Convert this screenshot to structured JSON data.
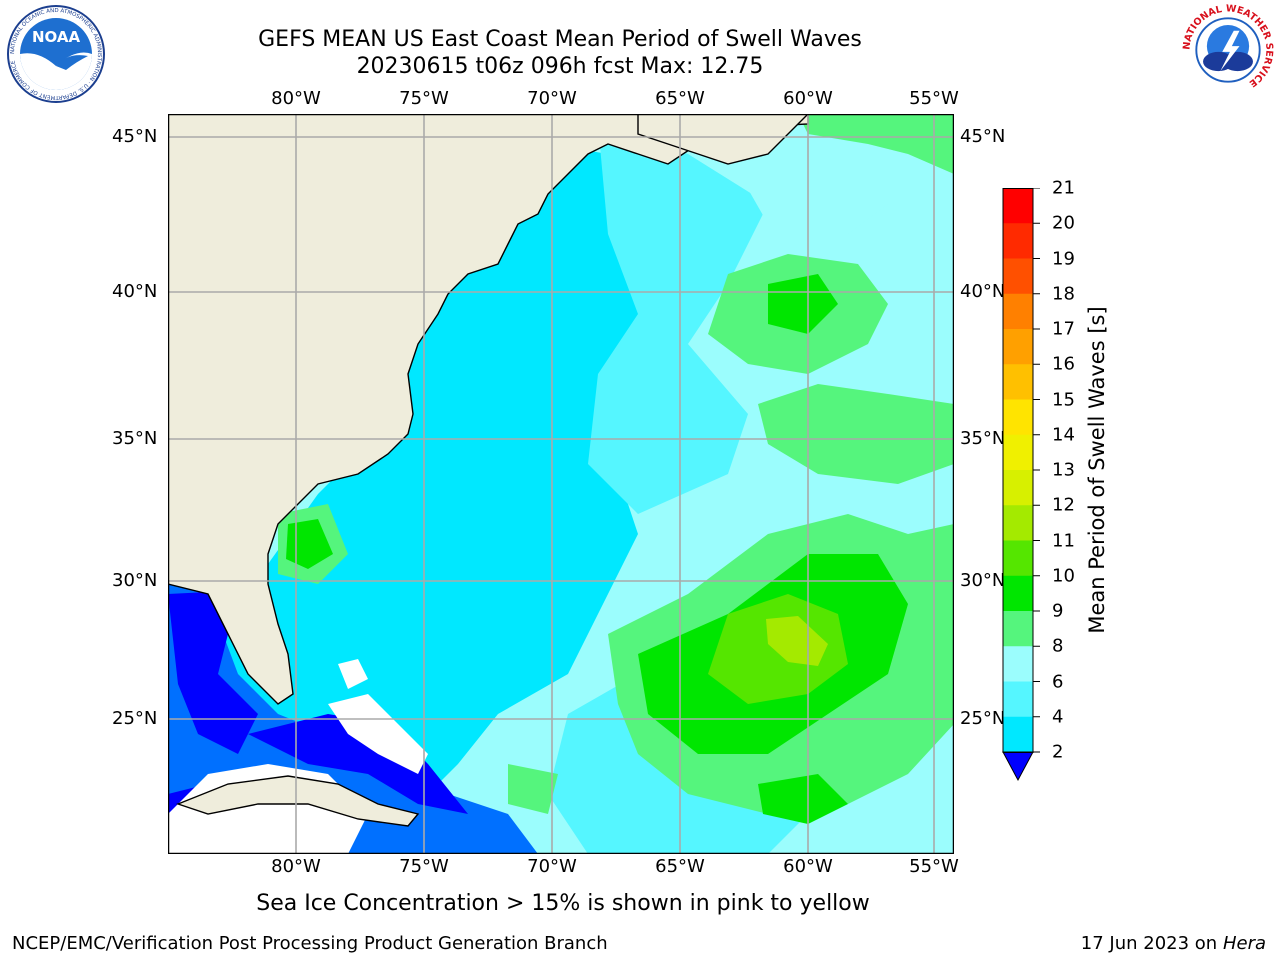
{
  "header": {
    "title_line1": "GEFS MEAN US East Coast Mean Period of Swell Waves",
    "title_line2": "20230615 t06z 096h fcst   Max: 12.75"
  },
  "logos": {
    "left": {
      "icon": "noaa-logo",
      "text": "NOAA",
      "ring_text": "NATIONAL OCEANIC AND ATMOSPHERIC ADMINISTRATION · U.S. DEPARTMENT OF COMMERCE"
    },
    "right": {
      "icon": "nws-logo",
      "ring_text": "NATIONAL WEATHER SERVICE"
    }
  },
  "map": {
    "lon_labels": [
      "80°W",
      "75°W",
      "70°W",
      "65°W",
      "60°W",
      "55°W"
    ],
    "lat_labels": [
      "45°N",
      "40°N",
      "35°N",
      "30°N",
      "25°N"
    ],
    "colors": {
      "land": "#efeddc",
      "gridline": "#aaaaaa",
      "coast": "#000000"
    }
  },
  "colorbar": {
    "label": "Mean Period of Swell Waves [s]",
    "ticks": [
      "2",
      "4",
      "6",
      "8",
      "9",
      "10",
      "11",
      "12",
      "13",
      "14",
      "15",
      "16",
      "17",
      "18",
      "19",
      "20",
      "21"
    ],
    "colors": [
      "#0070ff",
      "#00e8ff",
      "#55f6ff",
      "#9bfdfd",
      "#55f57d",
      "#00e600",
      "#55e600",
      "#a4ea00",
      "#d7f000",
      "#f0f000",
      "#ffe400",
      "#ffc000",
      "#ffa000",
      "#ff8000",
      "#ff5000",
      "#ff2a00",
      "#ff0000"
    ],
    "under_color": "#0000ff"
  },
  "note": "Sea Ice Concentration > 15% is shown in pink to yellow",
  "footer": {
    "left": "NCEP/EMC/Verification Post Processing Product Generation Branch",
    "right_date": "17 Jun 2023 on",
    "right_host": "Hera"
  }
}
